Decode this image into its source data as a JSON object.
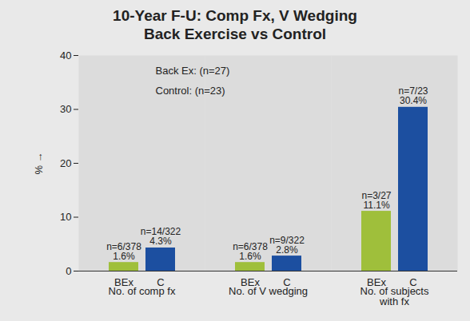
{
  "chart_data": {
    "type": "bar",
    "title": "10-Year F-U: Comp Fx, V Wedging",
    "subtitle": "Back Exercise vs Control",
    "y_label": "%",
    "categories": [
      "No. of comp fx",
      "No. of V wedging",
      "No. of subjects with fx"
    ],
    "series": [
      {
        "name": "BEx",
        "color": "#9fbf3b",
        "values": [
          1.6,
          1.6,
          11.1
        ],
        "value_labels": [
          "n=6/378\n1.6%",
          "n=6/378\n1.6%",
          "n=3/27\n11.1%"
        ]
      },
      {
        "name": "C",
        "color": "#1c4fa0",
        "values": [
          4.3,
          2.8,
          30.4
        ],
        "value_labels": [
          "n=14/322\n4.3%",
          "n=9/322\n2.8%",
          "n=7/23\n30.4%"
        ]
      }
    ],
    "annotations": [
      "Back Ex: (n=27)",
      "Control: (n=23)"
    ],
    "ylim": [
      0,
      40
    ],
    "yticks": [
      0,
      10,
      20,
      30,
      40
    ],
    "grid": false,
    "data_labels": true
  }
}
